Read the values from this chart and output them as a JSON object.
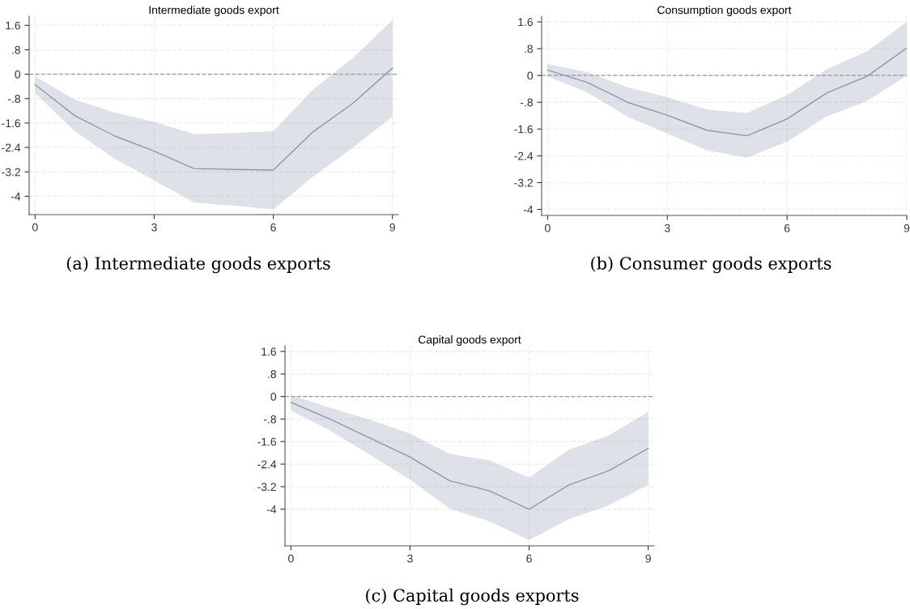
{
  "chart_data": [
    {
      "type": "line",
      "title": "Intermediate goods export",
      "x": [
        0,
        1,
        2,
        3,
        4,
        5,
        6,
        7,
        8,
        9
      ],
      "xlim": [
        -0.15,
        9.15
      ],
      "xticks": [
        0,
        3,
        6,
        9
      ],
      "ylim": [
        -4.6,
        1.9
      ],
      "yticks": [
        {
          "value": 1.6,
          "label": "1.6"
        },
        {
          "value": 0.8,
          "label": ".8"
        },
        0,
        {
          "value": -0.8,
          "label": "-.8"
        },
        -1.6,
        -2.4,
        -3.2,
        -4
      ],
      "grid": true,
      "series": [
        {
          "color": "#8a97ad",
          "values": [
            -0.34,
            -1.36,
            -2.02,
            -2.52,
            -3.09,
            -3.12,
            -3.14,
            -1.89,
            -0.96,
            0.2
          ],
          "lower": [
            -0.62,
            -1.87,
            -2.76,
            -3.48,
            -4.2,
            -4.31,
            -4.43,
            -3.36,
            -2.41,
            -1.39
          ],
          "upper": [
            -0.07,
            -0.83,
            -1.25,
            -1.56,
            -1.96,
            -1.93,
            -1.87,
            -0.5,
            0.53,
            1.77
          ]
        }
      ],
      "ref_lines": [
        {
          "axis": "y",
          "value": 0,
          "color": "#9a9a9a",
          "line_style": "dashed"
        }
      ],
      "annotations": [
        "(a) Intermediate goods exports"
      ]
    },
    {
      "type": "line",
      "title": "Consumption goods export",
      "x": [
        0,
        1,
        2,
        3,
        4,
        5,
        6,
        7,
        8,
        9
      ],
      "xlim": [
        -0.15,
        9.0
      ],
      "xticks": [
        0,
        3,
        6,
        9
      ],
      "ylim": [
        -4.18,
        1.77
      ],
      "yticks": [
        {
          "value": 1.6,
          "label": "1.6"
        },
        {
          "value": 0.8,
          "label": ".8"
        },
        0,
        {
          "value": -0.8,
          "label": "-.8"
        },
        -1.6,
        -2.4,
        -3.2,
        -4
      ],
      "grid": true,
      "series": [
        {
          "color": "#8a97ad",
          "values": [
            0.16,
            -0.21,
            -0.8,
            -1.19,
            -1.64,
            -1.8,
            -1.3,
            -0.52,
            -0.03,
            0.82
          ],
          "lower": [
            -0.03,
            -0.51,
            -1.23,
            -1.74,
            -2.24,
            -2.45,
            -1.98,
            -1.22,
            -0.77,
            0.0
          ],
          "upper": [
            0.34,
            0.1,
            -0.35,
            -0.65,
            -1.02,
            -1.12,
            -0.59,
            0.19,
            0.72,
            1.6
          ]
        }
      ],
      "ref_lines": [
        {
          "axis": "y",
          "value": 0,
          "color": "#9a9a9a",
          "line_style": "dashed"
        }
      ],
      "annotations": [
        "(b) Consumer goods exports"
      ]
    },
    {
      "type": "line",
      "title": "Capital goods export",
      "x": [
        0,
        1,
        2,
        3,
        4,
        5,
        6,
        7,
        8,
        9
      ],
      "xlim": [
        -0.15,
        9.15
      ],
      "xticks": [
        0,
        3,
        6,
        9
      ],
      "ylim": [
        -5.3,
        1.8
      ],
      "yticks": [
        {
          "value": 1.6,
          "label": "1.6"
        },
        {
          "value": 0.8,
          "label": ".8"
        },
        0,
        {
          "value": -0.8,
          "label": "-.8"
        },
        -1.6,
        -2.4,
        -3.2,
        -4
      ],
      "grid": true,
      "series": [
        {
          "color": "#8a97ad",
          "values": [
            -0.21,
            -0.81,
            -1.48,
            -2.15,
            -2.99,
            -3.35,
            -4.0,
            -3.14,
            -2.64,
            -1.84
          ],
          "lower": [
            -0.5,
            -1.22,
            -2.08,
            -2.95,
            -3.98,
            -4.43,
            -5.1,
            -4.35,
            -3.87,
            -3.14
          ],
          "upper": [
            0.05,
            -0.4,
            -0.83,
            -1.32,
            -2.04,
            -2.27,
            -2.88,
            -1.89,
            -1.38,
            -0.55
          ]
        }
      ],
      "ref_lines": [
        {
          "axis": "y",
          "value": 0,
          "color": "#9a9a9a",
          "line_style": "dashed"
        }
      ],
      "annotations": [
        "(c) Capital goods exports"
      ]
    }
  ]
}
